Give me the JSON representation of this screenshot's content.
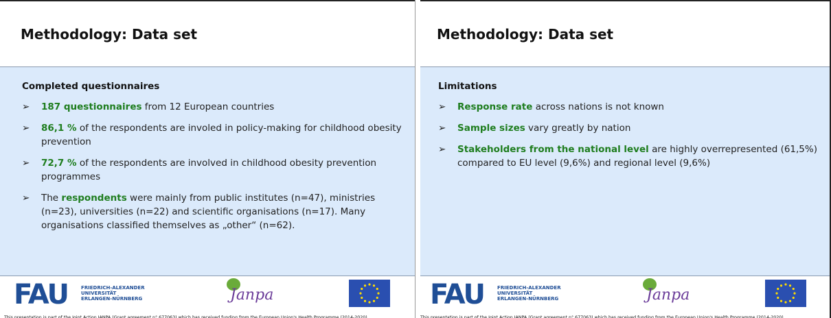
{
  "slides": [
    {
      "title": "Methodology: Data set",
      "heading": "Completed questionnaires",
      "bullet_marker": "➢",
      "bullets": [
        {
          "segments": [
            {
              "text": "187 questionnaires",
              "emphasis": true
            },
            {
              "text": " from 12 European countries",
              "emphasis": false
            }
          ]
        },
        {
          "segments": [
            {
              "text": "86,1 %",
              "emphasis": true
            },
            {
              "text": " of the respondents are involed in policy-making for childhood obesity prevention",
              "emphasis": false
            }
          ]
        },
        {
          "segments": [
            {
              "text": "72,7 %",
              "emphasis": true
            },
            {
              "text": " of the respondents are involved in childhood obesity prevention programmes",
              "emphasis": false
            }
          ]
        },
        {
          "segments": [
            {
              "text": "The ",
              "emphasis": false
            },
            {
              "text": "respondents",
              "emphasis": true
            },
            {
              "text": " were mainly from public institutes (n=47), ministries (n=23), universities (n=22) and scientific organisations (n=17). Many organisations classified themselves as „other“ (n=62).",
              "emphasis": false
            }
          ]
        }
      ],
      "footer": {
        "university_abbr": "FAU",
        "university_name": [
          "FRIEDRICH-ALEXANDER",
          "UNIVERSITÄT",
          "ERLANGEN-NÜRNBERG"
        ],
        "project_logo": "Janpa",
        "funding_note": "This presentation is part of the Joint Action JANPA (Grant agreement n° 677063) which has received funding from the European Union's Health Programme (2014-2020)"
      }
    },
    {
      "title": "Methodology: Data set",
      "heading": "Limitations",
      "bullet_marker": "➢",
      "bullets": [
        {
          "segments": [
            {
              "text": "Response rate",
              "emphasis": true
            },
            {
              "text": " across nations is not known",
              "emphasis": false
            }
          ]
        },
        {
          "segments": [
            {
              "text": "Sample sizes",
              "emphasis": true
            },
            {
              "text": " vary greatly by nation",
              "emphasis": false
            }
          ]
        },
        {
          "segments": [
            {
              "text": "Stakeholders from the national level",
              "emphasis": true
            },
            {
              "text": " are highly overrepresented (61,5%) compared to EU level (9,6%) and regional level (9,6%)",
              "emphasis": false
            }
          ]
        }
      ],
      "footer": {
        "university_abbr": "FAU",
        "university_name": [
          "FRIEDRICH-ALEXANDER",
          "UNIVERSITÄT",
          "ERLANGEN-NÜRNBERG"
        ],
        "project_logo": "Janpa",
        "funding_note": "This presentation is part of the Joint Action JANPA (Grant agreement n° 677063) which has received funding from the European Union's Health Programme (2014-2020)"
      }
    }
  ]
}
